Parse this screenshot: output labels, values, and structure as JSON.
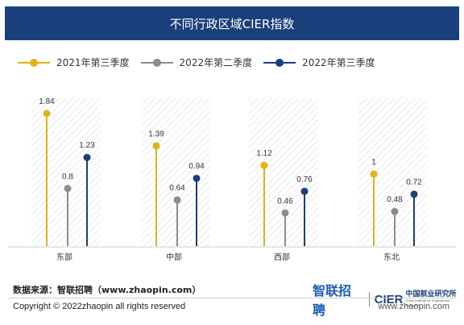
{
  "header": {
    "title": "不同行政区域CIER指数"
  },
  "chart_data": {
    "type": "lollipop",
    "title": "不同行政区域CIER指数",
    "categories": [
      "东部",
      "中部",
      "西部",
      "东北"
    ],
    "series": [
      {
        "name": "2021年第三季度",
        "color": "#e0b318",
        "values": [
          1.84,
          1.39,
          1.12,
          1
        ]
      },
      {
        "name": "2022年第二季度",
        "color": "#8c8c8c",
        "values": [
          0.8,
          0.64,
          0.46,
          0.48
        ]
      },
      {
        "name": "2022年第三季度",
        "color": "#1a3f7a",
        "values": [
          1.23,
          0.94,
          0.76,
          0.72
        ]
      }
    ],
    "ylim": [
      0,
      2
    ],
    "grid": false,
    "legend": "top-left"
  },
  "footer": {
    "source": "数据来源：智联招聘（www.zhaopin.com）",
    "brand_zhaopin": "智联招聘",
    "brand_cier": "CIER",
    "brand_cn": "中国就业研究所",
    "brand_en": "China Institute for Employment Research",
    "copyright": "Copyright © 2022zhaopin all rights reserved",
    "website": "www.zhaopin.com"
  }
}
